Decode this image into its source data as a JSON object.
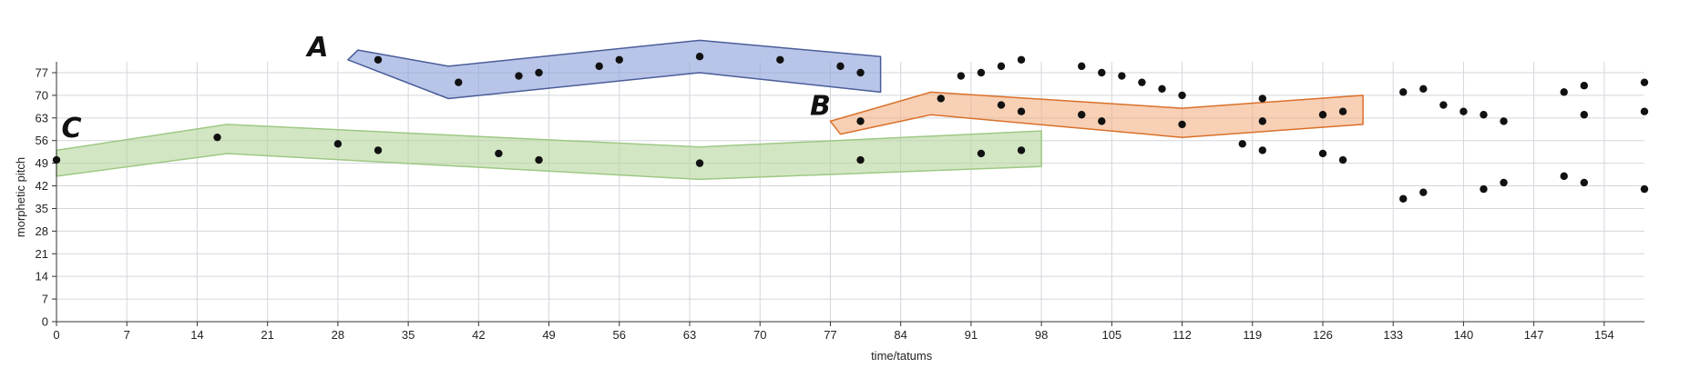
{
  "chart_data": {
    "type": "scatter",
    "title": "",
    "xlabel": "time/tatums",
    "ylabel": "morphetic pitch",
    "xlim": [
      0,
      158
    ],
    "ylim": [
      0,
      80
    ],
    "grid": true,
    "x_ticks": [
      0,
      7,
      14,
      21,
      28,
      35,
      42,
      49,
      56,
      63,
      70,
      77,
      84,
      91,
      98,
      105,
      112,
      119,
      126,
      133,
      140,
      147,
      154
    ],
    "y_ticks": [
      0,
      7,
      14,
      21,
      28,
      35,
      42,
      49,
      56,
      63,
      70,
      77
    ],
    "points": [
      [
        0,
        50
      ],
      [
        16,
        57
      ],
      [
        28,
        55
      ],
      [
        32,
        53
      ],
      [
        44,
        52
      ],
      [
        48,
        50
      ],
      [
        64,
        49
      ],
      [
        80,
        50
      ],
      [
        92,
        52
      ],
      [
        96,
        53
      ],
      [
        32,
        81
      ],
      [
        40,
        74
      ],
      [
        46,
        76
      ],
      [
        48,
        77
      ],
      [
        54,
        79
      ],
      [
        56,
        81
      ],
      [
        64,
        82
      ],
      [
        72,
        81
      ],
      [
        78,
        79
      ],
      [
        80,
        77
      ],
      [
        80,
        62
      ],
      [
        88,
        69
      ],
      [
        94,
        67
      ],
      [
        96,
        65
      ],
      [
        102,
        64
      ],
      [
        104,
        62
      ],
      [
        112,
        61
      ],
      [
        120,
        62
      ],
      [
        126,
        64
      ],
      [
        128,
        65
      ],
      [
        90,
        76
      ],
      [
        92,
        77
      ],
      [
        94,
        79
      ],
      [
        96,
        81
      ],
      [
        102,
        79
      ],
      [
        104,
        77
      ],
      [
        106,
        76
      ],
      [
        108,
        74
      ],
      [
        110,
        72
      ],
      [
        112,
        70
      ],
      [
        118,
        55
      ],
      [
        120,
        69
      ],
      [
        120,
        53
      ],
      [
        126,
        52
      ],
      [
        128,
        50
      ],
      [
        134,
        71
      ],
      [
        136,
        72
      ],
      [
        138,
        67
      ],
      [
        140,
        65
      ],
      [
        142,
        64
      ],
      [
        144,
        62
      ],
      [
        134,
        38
      ],
      [
        136,
        40
      ],
      [
        142,
        41
      ],
      [
        144,
        43
      ],
      [
        150,
        71
      ],
      [
        152,
        73
      ],
      [
        152,
        64
      ],
      [
        150,
        45
      ],
      [
        152,
        43
      ],
      [
        158,
        74
      ],
      [
        158,
        65
      ],
      [
        158,
        41
      ]
    ],
    "bands": [
      {
        "label": "A",
        "color": "#8b9fd8",
        "stroke": "#4a5d99",
        "label_at": [
          26,
          82
        ],
        "polygon": [
          [
            29,
            81
          ],
          [
            30,
            84
          ],
          [
            39,
            79
          ],
          [
            64,
            87
          ],
          [
            82,
            82
          ],
          [
            82,
            71
          ],
          [
            64,
            77
          ],
          [
            39,
            69
          ]
        ]
      },
      {
        "label": "B",
        "color": "#f2b183",
        "stroke": "#d9702a",
        "label_at": [
          76,
          64
        ],
        "polygon": [
          [
            77,
            62
          ],
          [
            87,
            71
          ],
          [
            112,
            66
          ],
          [
            130,
            70
          ],
          [
            130,
            61
          ],
          [
            112,
            57
          ],
          [
            87,
            64
          ],
          [
            78,
            58
          ]
        ]
      },
      {
        "label": "C",
        "color": "#b5d59c",
        "stroke": "#9ec884",
        "label_at": [
          1.5,
          57
        ],
        "polygon": [
          [
            0,
            53
          ],
          [
            17,
            61
          ],
          [
            64,
            54
          ],
          [
            98,
            59
          ],
          [
            98,
            48
          ],
          [
            64,
            44
          ],
          [
            17,
            52
          ],
          [
            0,
            45
          ]
        ]
      }
    ]
  }
}
